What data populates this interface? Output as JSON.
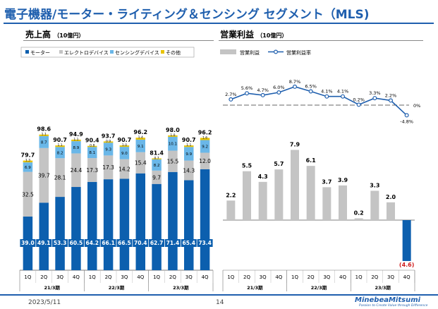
{
  "page": {
    "title": "電子機器/モーター・ライティング＆センシング セグメント（MLS)",
    "date": "2023/5/11",
    "page_number": "14",
    "logo_name": "MinebeaMitsumi",
    "logo_tagline": "Passion to Create Value through Difference"
  },
  "chart_data": [
    {
      "type": "bar",
      "stacked": true,
      "title": "売上高",
      "unit": "（10億円）",
      "categories": [
        "1Q",
        "2Q",
        "3Q",
        "4Q",
        "1Q",
        "2Q",
        "3Q",
        "4Q",
        "1Q",
        "2Q",
        "3Q",
        "4Q"
      ],
      "fiscal_years": [
        {
          "label": "21/3期",
          "count": 4
        },
        {
          "label": "22/3期",
          "count": 4
        },
        {
          "label": "23/3期",
          "count": 4
        }
      ],
      "series": [
        {
          "name": "モーター",
          "color": "#0c5fae",
          "values": [
            39.0,
            49.1,
            53.3,
            60.5,
            64.2,
            66.1,
            66.5,
            70.4,
            62.7,
            71.4,
            65.4,
            73.4
          ],
          "labels": [
            "39.0",
            "49.1",
            "53.3",
            "60.5",
            "64.2",
            "66.1",
            "66.5",
            "70.4",
            "62.7",
            "71.4",
            "65.4",
            "73.4"
          ]
        },
        {
          "name": "エレクトロデバイス",
          "color": "#c4c4c4",
          "values": [
            32.5,
            39.7,
            28.1,
            24.4,
            17.3,
            17.3,
            14.2,
            15.4,
            9.7,
            15.5,
            14.3,
            12.0
          ],
          "labels": [
            "32.5",
            "39.7",
            "28.1",
            "24.4",
            "17.3",
            "17.3",
            "14.2",
            "15.4",
            "9.7",
            "15.5",
            "14.3",
            "12.0"
          ]
        },
        {
          "name": "センシングデバイス",
          "color": "#6ab7e8",
          "values": [
            6.9,
            8.7,
            8.2,
            8.9,
            8.1,
            9.3,
            9.0,
            9.1,
            8.2,
            10.1,
            9.9,
            9.2
          ],
          "labels": [
            "6.9",
            "8.7",
            "8.2",
            "8.9",
            "8.1",
            "9.3",
            "9.0",
            "9.1",
            "8.2",
            "10.1",
            "9.9",
            "9.2"
          ]
        },
        {
          "name": "その他",
          "color": "#e8c300",
          "values": [
            1.3,
            1.1,
            1.1,
            1.1,
            0.8,
            0.9,
            1.0,
            1.4,
            0.7,
            1.0,
            1.1,
            1.6
          ],
          "labels": [
            "1.3",
            "1.1",
            "1.1",
            "1.1",
            "0.8",
            "0.9",
            "1.0",
            "1.4",
            "0.7",
            "1.0",
            "1.1",
            "1.6"
          ]
        }
      ],
      "totals": [
        "79.7",
        "98.6",
        "90.7",
        "94.9",
        "90.4",
        "93.7",
        "90.7",
        "96.2",
        "81.4",
        "98.0",
        "90.7",
        "96.2"
      ]
    },
    {
      "type": "bar+line",
      "title": "営業利益",
      "unit": "（10億円）",
      "categories": [
        "1Q",
        "2Q",
        "3Q",
        "4Q",
        "1Q",
        "2Q",
        "3Q",
        "4Q",
        "1Q",
        "2Q",
        "3Q",
        "4Q"
      ],
      "fiscal_years": [
        {
          "label": "21/3期",
          "count": 4
        },
        {
          "label": "22/3期",
          "count": 4
        },
        {
          "label": "23/3期",
          "count": 4
        }
      ],
      "bar_series": {
        "name": "営業利益",
        "color": "#c4c4c4",
        "negative_color": "#0c5fae",
        "values": [
          2.2,
          5.5,
          4.3,
          5.7,
          7.9,
          6.1,
          3.7,
          3.9,
          0.2,
          3.3,
          2.0,
          -4.6
        ],
        "labels": [
          "2.2",
          "5.5",
          "4.3",
          "5.7",
          "7.9",
          "6.1",
          "3.7",
          "3.9",
          "0.2",
          "3.3",
          "2.0",
          "(4.6)"
        ]
      },
      "line_series": {
        "name": "営業利益率",
        "color": "#1f5fae",
        "values": [
          2.7,
          5.6,
          4.7,
          6.0,
          8.7,
          6.5,
          4.1,
          4.1,
          0.2,
          3.3,
          2.2,
          -4.8
        ],
        "labels": [
          "2.7%",
          "5.6%",
          "4.7%",
          "6.0%",
          "8.7%",
          "6.5%",
          "4.1%",
          "4.1%",
          "0.2%",
          "3.3%",
          "2.2%",
          "-4.8%"
        ]
      },
      "zero_line_label": "0%"
    }
  ]
}
